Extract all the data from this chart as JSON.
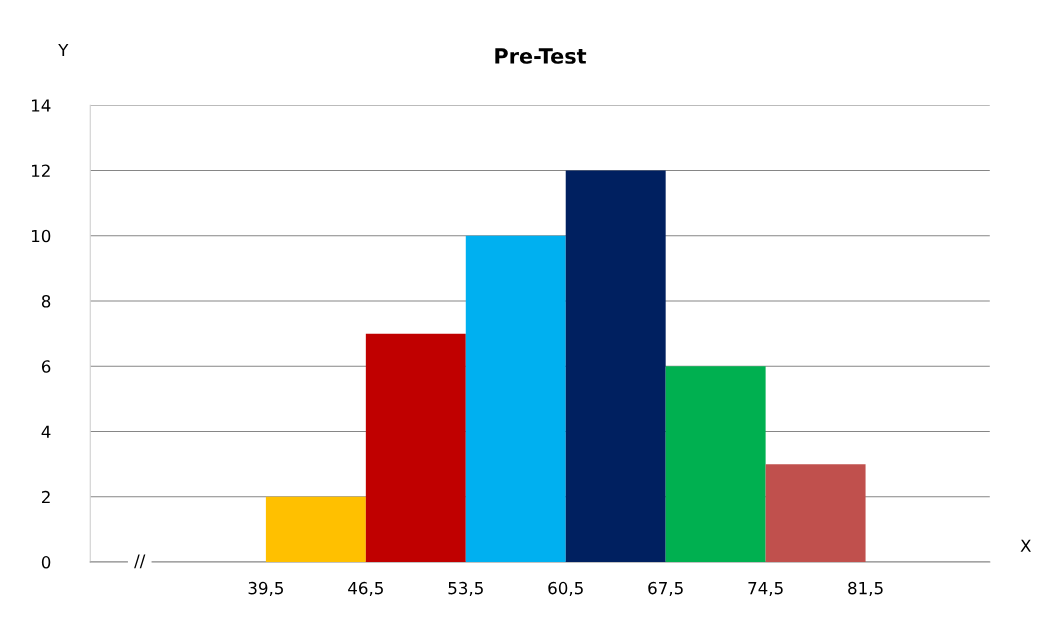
{
  "chart_data": {
    "type": "histogram",
    "title": "Pre-Test",
    "xlabel": "X",
    "ylabel": "Y",
    "bins": [
      39.5,
      46.5,
      53.5,
      60.5,
      67.5,
      74.5,
      81.5
    ],
    "values": [
      2,
      7,
      10,
      12,
      6,
      3
    ],
    "colors": [
      "#ffc000",
      "#c00000",
      "#00b0f0",
      "#002060",
      "#00b050",
      "#c0504d"
    ],
    "xlim": [
      27.2,
      90.2
    ],
    "xticks": [
      {
        "value": 39.5,
        "label": "39,5"
      },
      {
        "value": 46.5,
        "label": "46,5"
      },
      {
        "value": 53.5,
        "label": "53,5"
      },
      {
        "value": 60.5,
        "label": "60,5"
      },
      {
        "value": 67.5,
        "label": "67,5"
      },
      {
        "value": 74.5,
        "label": "74,5"
      },
      {
        "value": 81.5,
        "label": "81,5"
      }
    ],
    "ylim": [
      0,
      14
    ],
    "yticks": [
      0,
      2,
      4,
      6,
      8,
      10,
      12,
      14
    ],
    "grid": "y",
    "annotations": [
      "//"
    ]
  }
}
